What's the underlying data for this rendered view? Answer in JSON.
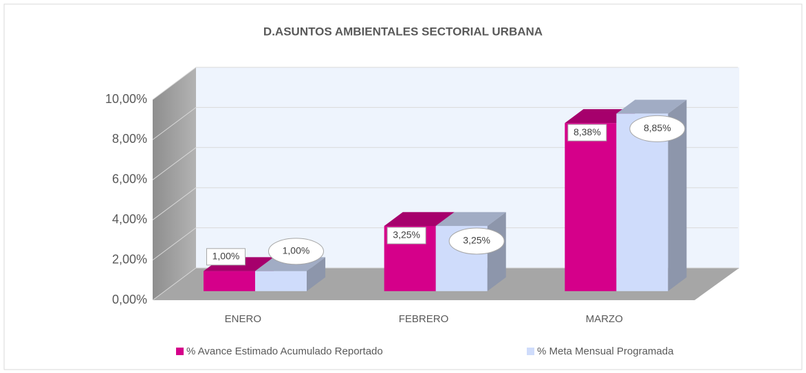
{
  "chart_data": {
    "type": "bar3d",
    "title": "D.ASUNTOS  AMBIENTALES SECTORIAL URBANA",
    "categories": [
      "ENERO",
      "FEBRERO",
      "MARZO"
    ],
    "series": [
      {
        "name": "% Avance Estimado Acumulado Reportado",
        "color": "#d5008a",
        "values": [
          1.0,
          3.25,
          8.38
        ],
        "value_labels": [
          "1,00%",
          "3,25%",
          "8,38%"
        ]
      },
      {
        "name": "% Meta Mensual Programada",
        "color": "#cfdcfb",
        "values": [
          1.0,
          3.25,
          8.85
        ],
        "value_labels": [
          "1,00%",
          "3,25%",
          "8,85%"
        ]
      }
    ],
    "ylim": [
      0,
      10
    ],
    "yticks": [
      {
        "value": 0,
        "label": "0,00%"
      },
      {
        "value": 2,
        "label": "2,00%"
      },
      {
        "value": 4,
        "label": "4,00%"
      },
      {
        "value": 6,
        "label": "6,00%"
      },
      {
        "value": 8,
        "label": "8,00%"
      },
      {
        "value": 10,
        "label": "10,00%"
      }
    ],
    "grid": true,
    "legend": "bottom"
  }
}
